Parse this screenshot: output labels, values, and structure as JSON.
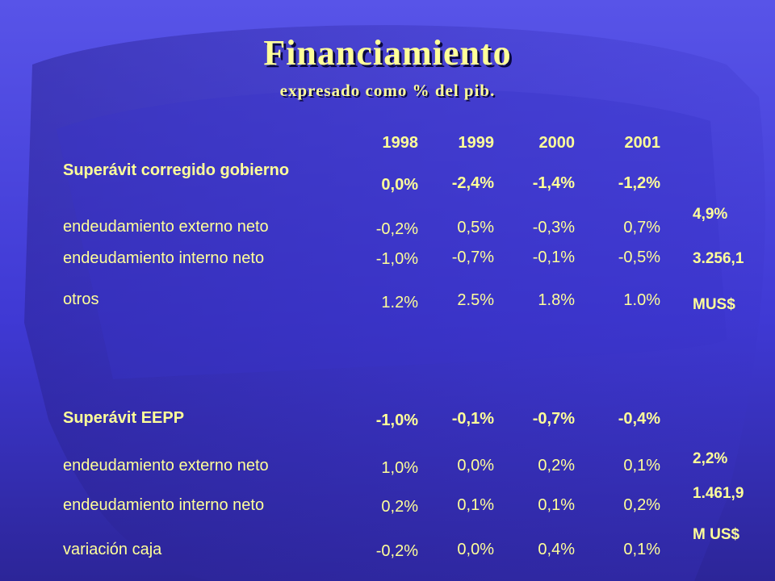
{
  "slide": {
    "title": "Financiamiento",
    "subtitle": "expresado como % del pib."
  },
  "table": {
    "years": [
      "1998",
      "1999",
      "2000",
      "2001"
    ],
    "sections": [
      {
        "rows": [
          {
            "label": "Superávit corregido gobierno",
            "bold": true,
            "values": [
              "0,0%",
              "-2,4%",
              "-1,4%",
              "-1,2%"
            ]
          },
          {
            "label": "endeudamiento externo neto",
            "bold": false,
            "values": [
              "-0,2%",
              "0,5%",
              "-0,3%",
              "0,7%"
            ]
          },
          {
            "label": "endeudamiento interno neto",
            "bold": false,
            "values": [
              "-1,0%",
              "-0,7%",
              "-0,1%",
              "-0,5%"
            ]
          },
          {
            "label": "otros",
            "bold": false,
            "values": [
              "1.2%",
              "2.5%",
              "1.8%",
              "1.0%"
            ]
          }
        ],
        "notes": [
          "4,9%",
          "3.256,1",
          "MUS$"
        ]
      },
      {
        "rows": [
          {
            "label": "Superávit EEPP",
            "bold": true,
            "values": [
              "-1,0%",
              "-0,1%",
              "-0,7%",
              "-0,4%"
            ]
          },
          {
            "label": "endeudamiento externo neto",
            "bold": false,
            "values": [
              "1,0%",
              "0,0%",
              "0,2%",
              "0,1%"
            ]
          },
          {
            "label": "endeudamiento interno neto",
            "bold": false,
            "values": [
              "0,2%",
              "0,1%",
              "0,1%",
              "0,2%"
            ]
          },
          {
            "label": "variación caja",
            "bold": false,
            "values": [
              "-0,2%",
              "0,0%",
              "0,4%",
              "0,1%"
            ]
          }
        ],
        "notes": [
          "2,2%",
          "1.461,9",
          "M US$"
        ]
      }
    ]
  },
  "colors": {
    "background": "#3c36d2",
    "text": "#ffff99",
    "title_shadow": "#0a0840"
  }
}
